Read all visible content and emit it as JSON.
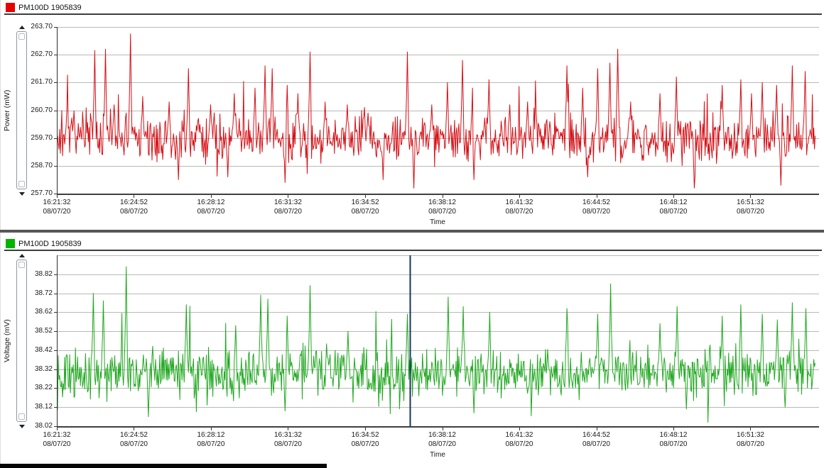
{
  "ui": {
    "divider_color": "#565656",
    "bottom_bar_color": "#060606",
    "gridline_color": "#b9b9b9"
  },
  "chart_data": [
    {
      "type": "line",
      "series_name": "PM100D 1905839",
      "line_color": "#d50f15",
      "legend_swatch_color": "#e80000",
      "ylabel": "Power (mW)",
      "xlabel": "Time",
      "ylim": [
        257.7,
        263.7
      ],
      "ytick_values": [
        263.7,
        262.7,
        261.7,
        260.7,
        259.7,
        258.7,
        257.7
      ],
      "ytick_labels": [
        "263.70",
        "262.70",
        "261.70",
        "260.70",
        "259.70",
        "258.70",
        "257.70"
      ],
      "gridline_values": [
        263.7,
        262.7,
        261.7,
        260.7,
        259.7,
        258.7
      ],
      "xticks": [
        {
          "f": 0.0,
          "time": "16:21:32",
          "date": "08/07/20"
        },
        {
          "f": 0.1012,
          "time": "16:24:52",
          "date": "08/07/20"
        },
        {
          "f": 0.2024,
          "time": "16:28:12",
          "date": "08/07/20"
        },
        {
          "f": 0.3036,
          "time": "16:31:32",
          "date": "08/07/20"
        },
        {
          "f": 0.4049,
          "time": "16:34:52",
          "date": "08/07/20"
        },
        {
          "f": 0.5061,
          "time": "16:38:12",
          "date": "08/07/20"
        },
        {
          "f": 0.6073,
          "time": "16:41:32",
          "date": "08/07/20"
        },
        {
          "f": 0.7085,
          "time": "16:44:52",
          "date": "08/07/20"
        },
        {
          "f": 0.8097,
          "time": "16:48:12",
          "date": "08/07/20"
        },
        {
          "f": 0.9109,
          "time": "16:51:32",
          "date": "08/07/20"
        }
      ],
      "baseline": 259.7,
      "noise_sigma": 0.4,
      "wander_amp": 0.12,
      "spike_prob": 0.01,
      "spike_scale": [
        0.7,
        1.1
      ],
      "dip_prob": 0.006,
      "dip_scale": [
        0.5,
        0.8
      ],
      "spikes_up": [
        [
          0.049,
          262.85
        ],
        [
          0.063,
          262.9
        ],
        [
          0.075,
          260.9
        ],
        [
          0.096,
          263.45
        ],
        [
          0.112,
          261.2
        ],
        [
          0.147,
          261.0
        ],
        [
          0.173,
          262.2
        ],
        [
          0.202,
          260.9
        ],
        [
          0.233,
          261.3
        ],
        [
          0.261,
          261.5
        ],
        [
          0.274,
          262.3
        ],
        [
          0.283,
          262.2
        ],
        [
          0.303,
          261.6
        ],
        [
          0.317,
          261.3
        ],
        [
          0.333,
          262.8
        ],
        [
          0.353,
          261.0
        ],
        [
          0.382,
          260.9
        ],
        [
          0.41,
          260.6
        ],
        [
          0.462,
          262.8
        ],
        [
          0.494,
          260.9
        ],
        [
          0.515,
          261.7
        ],
        [
          0.534,
          262.5
        ],
        [
          0.548,
          261.5
        ],
        [
          0.569,
          261.8
        ],
        [
          0.597,
          260.9
        ],
        [
          0.62,
          261.0
        ],
        [
          0.672,
          262.3
        ],
        [
          0.693,
          261.5
        ],
        [
          0.713,
          262.2
        ],
        [
          0.729,
          262.4
        ],
        [
          0.739,
          262.9
        ],
        [
          0.756,
          261.0
        ],
        [
          0.795,
          261.3
        ],
        [
          0.817,
          261.9
        ],
        [
          0.877,
          261.6
        ],
        [
          0.902,
          261.8
        ],
        [
          0.916,
          261.3
        ],
        [
          0.93,
          261.7
        ],
        [
          0.949,
          261.6
        ],
        [
          0.97,
          262.3
        ],
        [
          0.987,
          262.1
        ]
      ],
      "spikes_down": [
        [
          0.16,
          258.2
        ],
        [
          0.225,
          258.3
        ],
        [
          0.3,
          258.1
        ],
        [
          0.43,
          258.2
        ],
        [
          0.47,
          257.9
        ],
        [
          0.55,
          258.2
        ],
        [
          0.7,
          258.3
        ],
        [
          0.84,
          257.9
        ],
        [
          0.955,
          258.0
        ]
      ],
      "seed": 7,
      "cursor": null
    },
    {
      "type": "line",
      "series_name": "PM100D 1905839",
      "line_color": "#1fa81f",
      "legend_swatch_color": "#00b400",
      "ylabel": "Voltage (mV)",
      "xlabel": "Time",
      "ylim": [
        38.02,
        38.92
      ],
      "ytick_values": [
        38.82,
        38.72,
        38.62,
        38.52,
        38.42,
        38.32,
        38.22,
        38.12,
        38.02
      ],
      "ytick_labels": [
        "38.82",
        "38.72",
        "38.62",
        "38.52",
        "38.42",
        "38.32",
        "38.22",
        "38.12",
        "38.02"
      ],
      "gridline_values": [
        38.92,
        38.82,
        38.72,
        38.62,
        38.52,
        38.42,
        38.32,
        38.22,
        38.12
      ],
      "xticks": [
        {
          "f": 0.0,
          "time": "16:21:32",
          "date": "08/07/20"
        },
        {
          "f": 0.1012,
          "time": "16:24:52",
          "date": "08/07/20"
        },
        {
          "f": 0.2024,
          "time": "16:28:12",
          "date": "08/07/20"
        },
        {
          "f": 0.3036,
          "time": "16:31:32",
          "date": "08/07/20"
        },
        {
          "f": 0.4049,
          "time": "16:34:52",
          "date": "08/07/20"
        },
        {
          "f": 0.5061,
          "time": "16:38:12",
          "date": "08/07/20"
        },
        {
          "f": 0.6073,
          "time": "16:41:32",
          "date": "08/07/20"
        },
        {
          "f": 0.7085,
          "time": "16:44:52",
          "date": "08/07/20"
        },
        {
          "f": 0.8097,
          "time": "16:48:12",
          "date": "08/07/20"
        },
        {
          "f": 0.9109,
          "time": "16:51:32",
          "date": "08/07/20"
        }
      ],
      "baseline": 38.3,
      "noise_sigma": 0.062,
      "wander_amp": 0.02,
      "spike_prob": 0.01,
      "spike_scale": [
        0.13,
        0.2
      ],
      "dip_prob": 0.006,
      "dip_scale": [
        0.1,
        0.15
      ],
      "spikes_up": [
        [
          0.047,
          38.72
        ],
        [
          0.06,
          38.68
        ],
        [
          0.091,
          38.86
        ],
        [
          0.17,
          38.66
        ],
        [
          0.235,
          38.55
        ],
        [
          0.268,
          38.71
        ],
        [
          0.278,
          38.69
        ],
        [
          0.303,
          38.6
        ],
        [
          0.333,
          38.76
        ],
        [
          0.383,
          38.52
        ],
        [
          0.462,
          38.61
        ],
        [
          0.516,
          38.7
        ],
        [
          0.535,
          38.65
        ],
        [
          0.57,
          38.62
        ],
        [
          0.672,
          38.64
        ],
        [
          0.713,
          38.61
        ],
        [
          0.73,
          38.77
        ],
        [
          0.795,
          38.56
        ],
        [
          0.818,
          38.65
        ],
        [
          0.877,
          38.6
        ],
        [
          0.902,
          38.66
        ],
        [
          0.93,
          38.61
        ],
        [
          0.95,
          38.58
        ],
        [
          0.97,
          38.67
        ],
        [
          0.988,
          38.64
        ]
      ],
      "spikes_down": [
        [
          0.12,
          38.07
        ],
        [
          0.3,
          38.1
        ],
        [
          0.55,
          38.09
        ],
        [
          0.83,
          38.11
        ],
        [
          0.96,
          38.12
        ]
      ],
      "seed": 13,
      "cursor": {
        "f": 0.4626,
        "color": "#17365d"
      }
    }
  ]
}
